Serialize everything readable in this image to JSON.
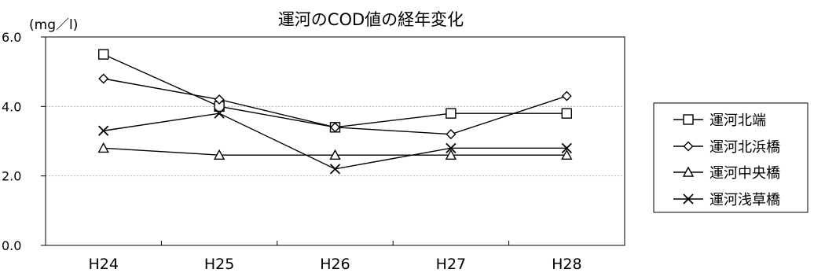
{
  "chart_data": {
    "type": "line",
    "title": "運河のCOD値の経年変化",
    "unit_label": "(mg／l)",
    "xlabel": "",
    "ylabel": "",
    "categories": [
      "H24",
      "H25",
      "H26",
      "H27",
      "H28"
    ],
    "y_ticks": [
      "0.0",
      "2.0",
      "4.0",
      "6.0"
    ],
    "ylim": [
      0,
      6
    ],
    "grid": true,
    "legend_position": "right",
    "series": [
      {
        "name": "運河北端",
        "marker": "square",
        "values": [
          5.5,
          4.0,
          3.4,
          3.8,
          3.8
        ]
      },
      {
        "name": "運河北浜橋",
        "marker": "diamond",
        "values": [
          4.8,
          4.2,
          3.4,
          3.2,
          4.3
        ]
      },
      {
        "name": "運河中央橋",
        "marker": "triangle",
        "values": [
          2.8,
          2.6,
          2.6,
          2.6,
          2.6
        ]
      },
      {
        "name": "運河浅草橋",
        "marker": "cross",
        "values": [
          3.3,
          3.8,
          2.2,
          2.8,
          2.8
        ]
      }
    ],
    "colors": {
      "line": "#000000",
      "grid": "#b3b3b3",
      "background": "#ffffff"
    }
  }
}
